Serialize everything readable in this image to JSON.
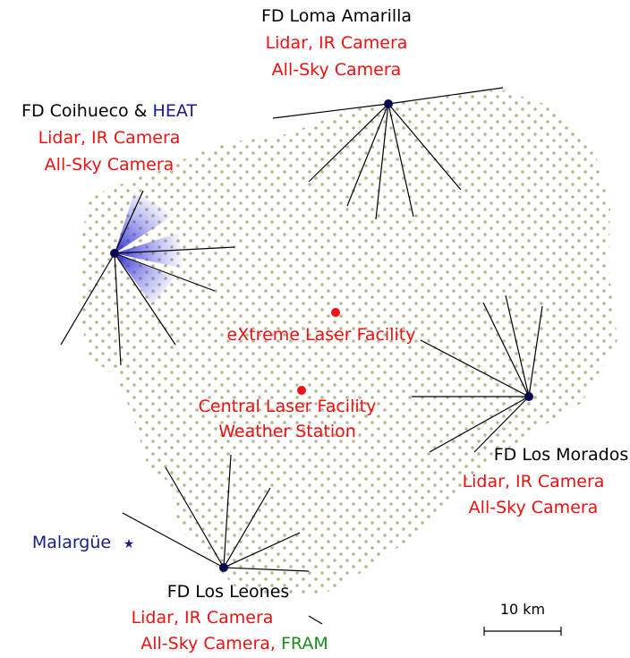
{
  "sites": [
    {
      "name": "FD Loma Amarilla",
      "instruments": [
        "Lidar, IR Camera",
        "All-Sky Camera"
      ]
    },
    {
      "name": "FD Coihueco &",
      "extra": "HEAT",
      "instruments": [
        "Lidar, IR Camera",
        "All-Sky Camera"
      ]
    },
    {
      "name": "FD Los Morados",
      "instruments": [
        "Lidar, IR Camera",
        "All-Sky Camera"
      ]
    },
    {
      "name": "FD Los Leones",
      "instruments": [
        "Lidar, IR Camera",
        "All-Sky Camera,"
      ],
      "extra": "FRAM"
    }
  ],
  "facilities": {
    "xlf": "eXtreme Laser Facility",
    "clf": [
      "Central Laser Facility",
      "Weather Station"
    ]
  },
  "town": "Malargüe",
  "scale": "10 km"
}
